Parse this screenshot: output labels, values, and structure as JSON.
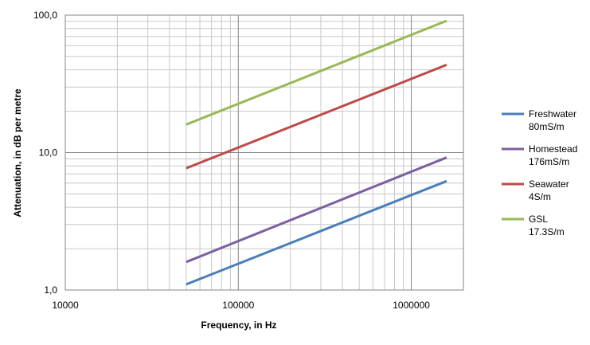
{
  "chart_data": {
    "type": "line",
    "xlabel": "Frequency, in Hz",
    "ylabel": "Attenuation, in dB per metre",
    "x_scale": "log",
    "y_scale": "log",
    "xlim": [
      10000,
      2000000
    ],
    "ylim": [
      1,
      100
    ],
    "x_ticks": [
      {
        "value": 10000,
        "label": "10000"
      },
      {
        "value": 100000,
        "label": "100000"
      },
      {
        "value": 1000000,
        "label": "1000000"
      }
    ],
    "y_ticks": [
      {
        "value": 1,
        "label": "1,0"
      },
      {
        "value": 10,
        "label": "10,0"
      },
      {
        "value": 100,
        "label": "100,0"
      }
    ],
    "grid": true,
    "legend_position": "right",
    "series": [
      {
        "name": "Freshwater 80mS/m",
        "name_lines": [
          "Freshwater",
          "80mS/m"
        ],
        "color": "#4a7ebb",
        "x": [
          50000,
          1600000
        ],
        "y": [
          1.1,
          6.2
        ]
      },
      {
        "name": "Homestead 176mS/m",
        "name_lines": [
          "Homestead",
          "176mS/m"
        ],
        "color": "#7d5fa0",
        "x": [
          50000,
          1600000
        ],
        "y": [
          1.6,
          9.2
        ]
      },
      {
        "name": "Seawater 4S/m",
        "name_lines": [
          "Seawater",
          "4S/m"
        ],
        "color": "#be4b48",
        "x": [
          50000,
          1600000
        ],
        "y": [
          7.7,
          43.5
        ]
      },
      {
        "name": "GSL 17.3S/m",
        "name_lines": [
          "GSL",
          "17.3S/m"
        ],
        "color": "#98b954",
        "x": [
          50000,
          1600000
        ],
        "y": [
          16,
          91
        ]
      }
    ]
  }
}
